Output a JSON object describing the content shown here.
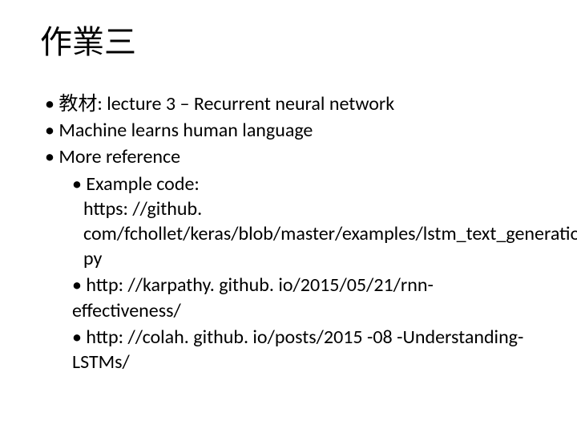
{
  "slide": {
    "title": "作業三",
    "title_fontsize": 40,
    "body_fontsize": 24,
    "text_color": "#000000",
    "background_color": "#ffffff",
    "bullets": [
      {
        "text": "教材: lecture 3 – Recurrent neural network",
        "level": 1
      },
      {
        "text": "Machine learns human language",
        "level": 1
      },
      {
        "text": "More reference",
        "level": 1,
        "children": [
          {
            "text": "Example code:",
            "continuation": "https: //github. com/fchollet/keras/blob/master/examples/lstm_text_generation. py",
            "level": 2
          },
          {
            "text": "http: //karpathy. github. io/2015/05/21/rnn-effectiveness/",
            "level": 2
          },
          {
            "text": "http: //colah. github. io/posts/2015 -08 -Understanding-LSTMs/",
            "level": 2
          }
        ]
      }
    ]
  }
}
